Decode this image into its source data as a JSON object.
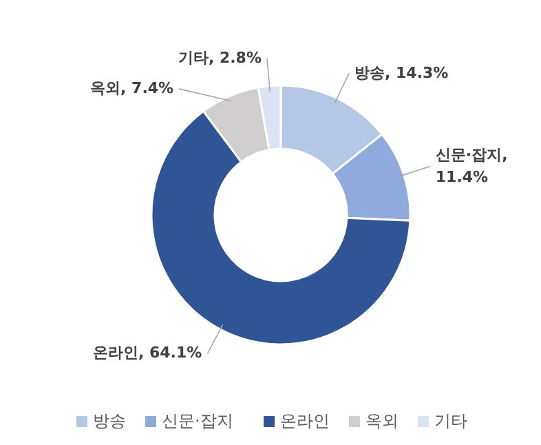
{
  "chart_data": {
    "type": "donut",
    "categories": [
      "방송",
      "신문·잡지",
      "온라인",
      "옥외",
      "기타"
    ],
    "values": [
      14.3,
      11.4,
      64.1,
      7.4,
      2.8
    ],
    "value_labels": [
      "방송, 14.3%",
      "신문·잡지, 11.4%",
      "온라인, 64.1%",
      "옥외, 7.4%",
      "기타, 2.8%"
    ],
    "colors": [
      "#b4c7e7",
      "#8faadc",
      "#2f5597",
      "#d0cece",
      "#dae3f3"
    ],
    "legend": "bottom"
  }
}
